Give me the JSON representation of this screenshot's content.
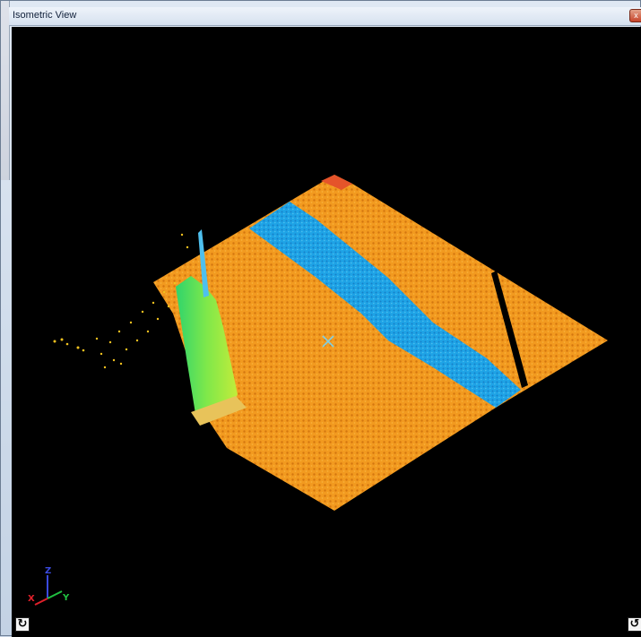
{
  "window": {
    "title": "Isometric View",
    "close_glyph": "x",
    "close_icon": "close-icon"
  },
  "viewport": {
    "background": "#000000",
    "axes": {
      "x": "X",
      "y": "Y",
      "z": "Z"
    },
    "axis_colors": {
      "x": "#e0202a",
      "y": "#20c040",
      "z": "#3a4adf"
    },
    "point_cloud_colors": {
      "ground": "#f29a1f",
      "ground_dark": "#d4760f",
      "water": "#1ea3e6",
      "water_dark": "#1680c8",
      "pillar": "#3fe07a",
      "pillar_light": "#c2ec3a",
      "ridge": "#e5542a"
    },
    "center_marker": "x-marker-icon",
    "left_button_icon": "rotate-view-icon",
    "right_button_icon": "pan-view-icon"
  }
}
